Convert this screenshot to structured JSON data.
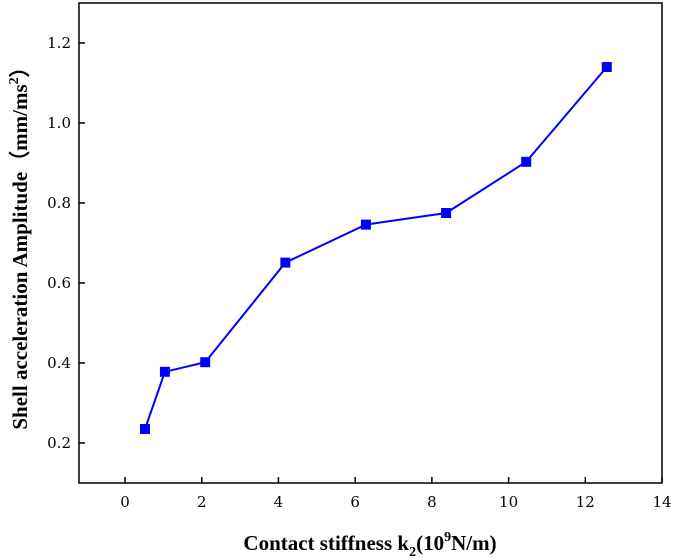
{
  "chart_data": {
    "type": "line",
    "title": "",
    "xlabel": {
      "prefix": "Contact stiffness k",
      "subscript": "2",
      "middle": "(10",
      "superscript": "9",
      "suffix": "N/m)"
    },
    "ylabel": {
      "prefix": "Shell acceleration Amplitude（mm/ms",
      "superscript": "2",
      "suffix": "）"
    },
    "xlim": [
      -1.2,
      14
    ],
    "ylim": [
      0.1,
      1.3
    ],
    "xticks": [
      "0",
      "2",
      "4",
      "6",
      "8",
      "10",
      "12",
      "14"
    ],
    "yticks": [
      "0.2",
      "0.4",
      "0.6",
      "0.8",
      "1.0",
      "1.2"
    ],
    "grid": false,
    "legend": "none",
    "marker": "square",
    "color": "#0000ff",
    "series": [
      {
        "x": [
          0.52,
          1.04,
          2.09,
          4.18,
          6.28,
          8.37,
          10.46,
          12.56
        ],
        "y": [
          0.235,
          0.378,
          0.402,
          0.651,
          0.746,
          0.775,
          0.903,
          1.14
        ]
      }
    ]
  }
}
